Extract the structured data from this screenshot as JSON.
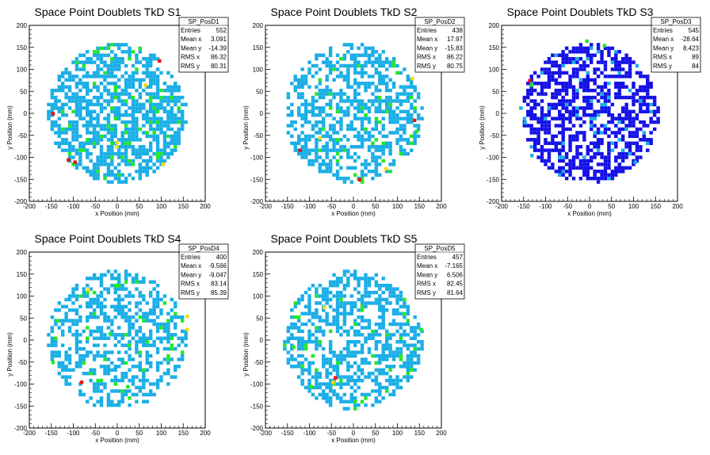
{
  "chart_data": [
    {
      "type": "heatmap",
      "title": "Space Point Doublets TkD S1",
      "xlabel": "x Position (mm)",
      "ylabel": "y Position (mm)",
      "xlim": [
        -200,
        200
      ],
      "ylim": [
        -200,
        200
      ],
      "xticks": [
        "-200",
        "-150",
        "-100",
        "-50",
        "0",
        "50",
        "100",
        "150",
        "200"
      ],
      "yticks": [
        "-200",
        "-150",
        "-100",
        "-50",
        "0",
        "50",
        "100",
        "150",
        "200"
      ],
      "stats": {
        "name": "SP_PosD1",
        "entries_label": "Entries",
        "entries": "552",
        "mean_x_label": "Mean x",
        "mean_x": "3.091",
        "mean_y_label": "Mean y",
        "mean_y": "-14.39",
        "rms_x_label": "RMS x",
        "rms_x": "86.32",
        "rms_y_label": "RMS y",
        "rms_y": "80.31"
      },
      "hot_spots": [
        [
          92,
          115,
          3
        ],
        [
          -150,
          -5,
          3
        ],
        [
          -115,
          -110,
          3
        ],
        [
          -100,
          -115,
          3
        ],
        [
          -5,
          -70,
          2
        ],
        [
          -5,
          -80,
          2
        ],
        [
          60,
          60,
          2
        ],
        [
          100,
          -120,
          2
        ]
      ],
      "palette": [
        "#1aaee6",
        "#22e822",
        "#f0dc10",
        "#e81414"
      ]
    },
    {
      "type": "heatmap",
      "title": "Space Point Doublets TkD S2",
      "xlabel": "x Position (mm)",
      "ylabel": "y Position (mm)",
      "xlim": [
        -200,
        200
      ],
      "ylim": [
        -200,
        200
      ],
      "xticks": [
        "-200",
        "-150",
        "-100",
        "-50",
        "0",
        "50",
        "100",
        "150",
        "200"
      ],
      "yticks": [
        "-200",
        "-150",
        "-100",
        "-50",
        "0",
        "50",
        "100",
        "150",
        "200"
      ],
      "stats": {
        "name": "SP_PosD2",
        "entries_label": "Entries",
        "entries": "438",
        "mean_x_label": "Mean x",
        "mean_x": "17.97",
        "mean_y_label": "Mean y",
        "mean_y": "-15.83",
        "rms_x_label": "RMS x",
        "rms_x": "86.22",
        "rms_y_label": "RMS y",
        "rms_y": "80.75"
      },
      "hot_spots": [
        [
          -125,
          -88,
          3
        ],
        [
          10,
          -155,
          3
        ],
        [
          135,
          -20,
          3
        ],
        [
          70,
          -130,
          2
        ],
        [
          -80,
          -60,
          2
        ],
        [
          130,
          75,
          2
        ],
        [
          140,
          -45,
          1
        ]
      ],
      "palette": [
        "#1aaee6",
        "#22e822",
        "#f0dc10",
        "#e81414"
      ]
    },
    {
      "type": "heatmap",
      "title": "Space Point Doublets TkD S3",
      "xlabel": "x Position (mm)",
      "ylabel": "y Position (mm)",
      "xlim": [
        -200,
        200
      ],
      "ylim": [
        -200,
        200
      ],
      "xticks": [
        "-200",
        "-150",
        "-100",
        "-50",
        "0",
        "50",
        "100",
        "150",
        "200"
      ],
      "yticks": [
        "-200",
        "-150",
        "-100",
        "-50",
        "0",
        "50",
        "100",
        "150",
        "200"
      ],
      "stats": {
        "name": "SP_PosD3",
        "entries_label": "Entries",
        "entries": "545",
        "mean_x_label": "Mean x",
        "mean_x": "-28.64",
        "mean_y_label": "Mean y",
        "mean_y": "8.423",
        "rms_x_label": "RMS x",
        "rms_x": "89",
        "rms_y_label": "RMS y",
        "rms_y": "84"
      },
      "hot_spots": [
        [
          -140,
          70,
          3
        ],
        [
          -135,
          60,
          2
        ],
        [
          -10,
          160,
          2
        ],
        [
          30,
          150,
          2
        ],
        [
          -150,
          -25,
          1
        ],
        [
          -135,
          -100,
          1
        ],
        [
          100,
          -115,
          1
        ]
      ],
      "palette": [
        "#1410e6",
        "#1aaee6",
        "#22e822",
        "#e81414"
      ]
    },
    {
      "type": "heatmap",
      "title": "Space Point Doublets TkD S4",
      "xlabel": "x Position (mm)",
      "ylabel": "y Position (mm)",
      "xlim": [
        -200,
        200
      ],
      "ylim": [
        -200,
        200
      ],
      "xticks": [
        "-200",
        "-150",
        "-100",
        "-50",
        "0",
        "50",
        "100",
        "150",
        "200"
      ],
      "yticks": [
        "-200",
        "-150",
        "-100",
        "-50",
        "0",
        "50",
        "100",
        "150",
        "200"
      ],
      "stats": {
        "name": "SP_PosD4",
        "entries_label": "Entries",
        "entries": "400",
        "mean_x_label": "Mean x",
        "mean_x": "-9.566",
        "mean_y_label": "Mean y",
        "mean_y": "-9.047",
        "rms_x_label": "RMS x",
        "rms_x": "83.14",
        "rms_y_label": "RMS y",
        "rms_y": "85.39"
      },
      "hot_spots": [
        [
          -85,
          -100,
          3
        ],
        [
          155,
          50,
          2
        ],
        [
          155,
          20,
          2
        ],
        [
          -70,
          110,
          2
        ],
        [
          -150,
          -55,
          1
        ],
        [
          -140,
          40,
          1
        ],
        [
          -20,
          10,
          1
        ],
        [
          20,
          -110,
          1
        ]
      ],
      "palette": [
        "#1aaee6",
        "#22e822",
        "#f0dc10",
        "#e81414"
      ]
    },
    {
      "type": "heatmap",
      "title": "Space Point Doublets TkD S5",
      "xlabel": "x Position (mm)",
      "ylabel": "y Position (mm)",
      "xlim": [
        -200,
        200
      ],
      "ylim": [
        -200,
        200
      ],
      "xticks": [
        "-200",
        "-150",
        "-100",
        "-50",
        "0",
        "50",
        "100",
        "150",
        "200"
      ],
      "yticks": [
        "-200",
        "-150",
        "-100",
        "-50",
        "0",
        "50",
        "100",
        "150",
        "200"
      ],
      "stats": {
        "name": "SP_PosD5",
        "entries_label": "Entries",
        "entries": "457",
        "mean_x_label": "Mean x",
        "mean_x": "-7.165",
        "mean_y_label": "Mean y",
        "mean_y": "6.506",
        "rms_x_label": "RMS x",
        "rms_x": "82.45",
        "rms_y_label": "RMS y",
        "rms_y": "81.64"
      },
      "hot_spots": [
        [
          -45,
          -90,
          3
        ],
        [
          -50,
          -100,
          2
        ],
        [
          -70,
          70,
          2
        ],
        [
          -100,
          -110,
          1
        ],
        [
          120,
          40,
          1
        ],
        [
          150,
          20,
          1
        ],
        [
          -140,
          -20,
          1
        ]
      ],
      "palette": [
        "#1aaee6",
        "#22e822",
        "#f0dc10",
        "#e81414"
      ]
    }
  ]
}
